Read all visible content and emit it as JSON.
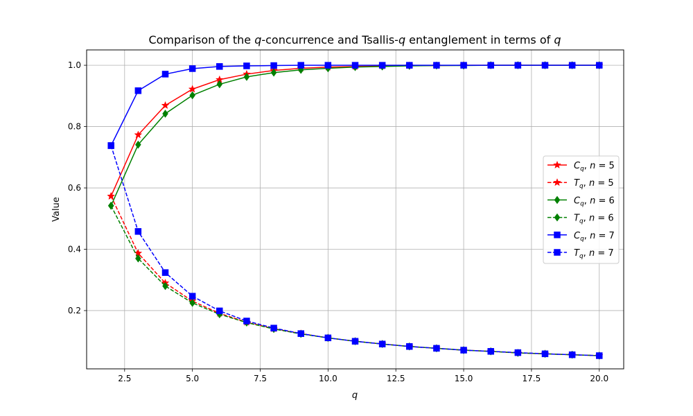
{
  "chart_data": {
    "type": "line",
    "title": "Comparison of the q-concurrence and Tsallis-q entanglement in terms of q",
    "xlabel": "q",
    "ylabel": "Value",
    "xlim": [
      1.1,
      20.9
    ],
    "ylim": [
      0.01,
      1.05
    ],
    "x_ticks": [
      "2.5",
      "5.0",
      "7.5",
      "10.0",
      "12.5",
      "15.0",
      "17.5",
      "20.0"
    ],
    "y_ticks": [
      "0.2",
      "0.4",
      "0.6",
      "0.8",
      "1.0"
    ],
    "grid": true,
    "legend_position": "center-right",
    "x": [
      2,
      3,
      4,
      5,
      6,
      7,
      8,
      9,
      10,
      11,
      12,
      13,
      14,
      15,
      16,
      17,
      18,
      19,
      20
    ],
    "series": [
      {
        "name": "C_q, n=5",
        "color": "#ff0000",
        "linestyle": "solid",
        "marker": "star",
        "values": [
          0.573,
          0.773,
          0.869,
          0.922,
          0.953,
          0.971,
          0.983,
          0.99,
          0.994,
          0.996,
          0.998,
          0.999,
          0.999,
          1.0,
          1.0,
          1.0,
          1.0,
          1.0,
          1.0
        ]
      },
      {
        "name": "T_q, n=5",
        "color": "#ff0000",
        "linestyle": "dashed",
        "marker": "star",
        "values": [
          0.573,
          0.387,
          0.29,
          0.231,
          0.191,
          0.162,
          0.141,
          0.125,
          0.111,
          0.1,
          0.091,
          0.083,
          0.077,
          0.071,
          0.067,
          0.062,
          0.059,
          0.056,
          0.053
        ]
      },
      {
        "name": "C_q, n=6",
        "color": "#008000",
        "linestyle": "solid",
        "marker": "diamond",
        "values": [
          0.542,
          0.741,
          0.842,
          0.902,
          0.938,
          0.962,
          0.976,
          0.985,
          0.99,
          0.994,
          0.996,
          0.998,
          0.999,
          0.999,
          1.0,
          1.0,
          1.0,
          1.0,
          1.0
        ]
      },
      {
        "name": "T_q, n=6",
        "color": "#008000",
        "linestyle": "dashed",
        "marker": "diamond",
        "values": [
          0.542,
          0.37,
          0.28,
          0.225,
          0.188,
          0.161,
          0.14,
          0.124,
          0.111,
          0.1,
          0.091,
          0.083,
          0.077,
          0.071,
          0.067,
          0.062,
          0.059,
          0.056,
          0.053
        ]
      },
      {
        "name": "C_q, n=7",
        "color": "#0000ff",
        "linestyle": "solid",
        "marker": "square",
        "values": [
          0.738,
          0.917,
          0.971,
          0.989,
          0.996,
          0.998,
          0.999,
          1.0,
          1.0,
          1.0,
          1.0,
          1.0,
          1.0,
          1.0,
          1.0,
          1.0,
          1.0,
          1.0,
          1.0
        ]
      },
      {
        "name": "T_q, n=7",
        "color": "#0000ff",
        "linestyle": "dashed",
        "marker": "square",
        "values": [
          0.738,
          0.458,
          0.324,
          0.247,
          0.199,
          0.166,
          0.143,
          0.125,
          0.111,
          0.1,
          0.091,
          0.083,
          0.077,
          0.071,
          0.067,
          0.063,
          0.059,
          0.056,
          0.053
        ]
      }
    ]
  }
}
